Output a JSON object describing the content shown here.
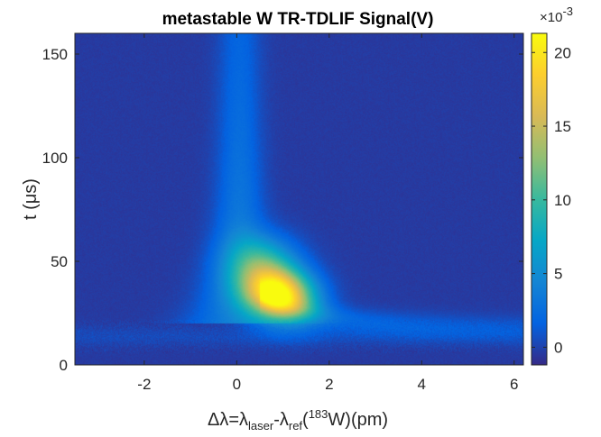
{
  "chart_data": {
    "type": "heatmap",
    "title": "metastable W TR-TDLIF Signal(V)",
    "xlabel": {
      "delta": "Δ",
      "lambda": "λ",
      "eq": "=",
      "sub_laser": "laser",
      "minus": "-",
      "sub_ref": "ref",
      "paren_open": "(",
      "sup_183": "183",
      "w_close": "W)(pm)"
    },
    "ylabel": {
      "t_open": "t (",
      "mu": "μ",
      "s_close": "s)"
    },
    "xlim": [
      -3.5,
      6.2
    ],
    "ylim": [
      0,
      160
    ],
    "xticks": [
      -2,
      0,
      2,
      4,
      6
    ],
    "xtick_labels": [
      "-2",
      "0",
      "2",
      "4",
      "6"
    ],
    "yticks": [
      0,
      50,
      100,
      150
    ],
    "ytick_labels": [
      "0",
      "50",
      "100",
      "150"
    ],
    "colorbar": {
      "multiplier_base": "×10",
      "multiplier_exp": "-3",
      "range": [
        -1.2,
        21.3
      ],
      "ticks": [
        0,
        5,
        10,
        15,
        20
      ],
      "tick_labels": [
        "0",
        "5",
        "10",
        "15",
        "20"
      ],
      "colormap": "parula"
    },
    "features": [
      {
        "name": "peak",
        "x": 0.9,
        "t": 35,
        "value": 21
      },
      {
        "name": "vertical-band",
        "x": 0.1,
        "t_range": [
          40,
          160
        ],
        "value": 4
      },
      {
        "name": "decay-tail",
        "x_range": [
          1,
          6.2
        ],
        "t_range": [
          16,
          30
        ],
        "value": 3
      }
    ]
  }
}
